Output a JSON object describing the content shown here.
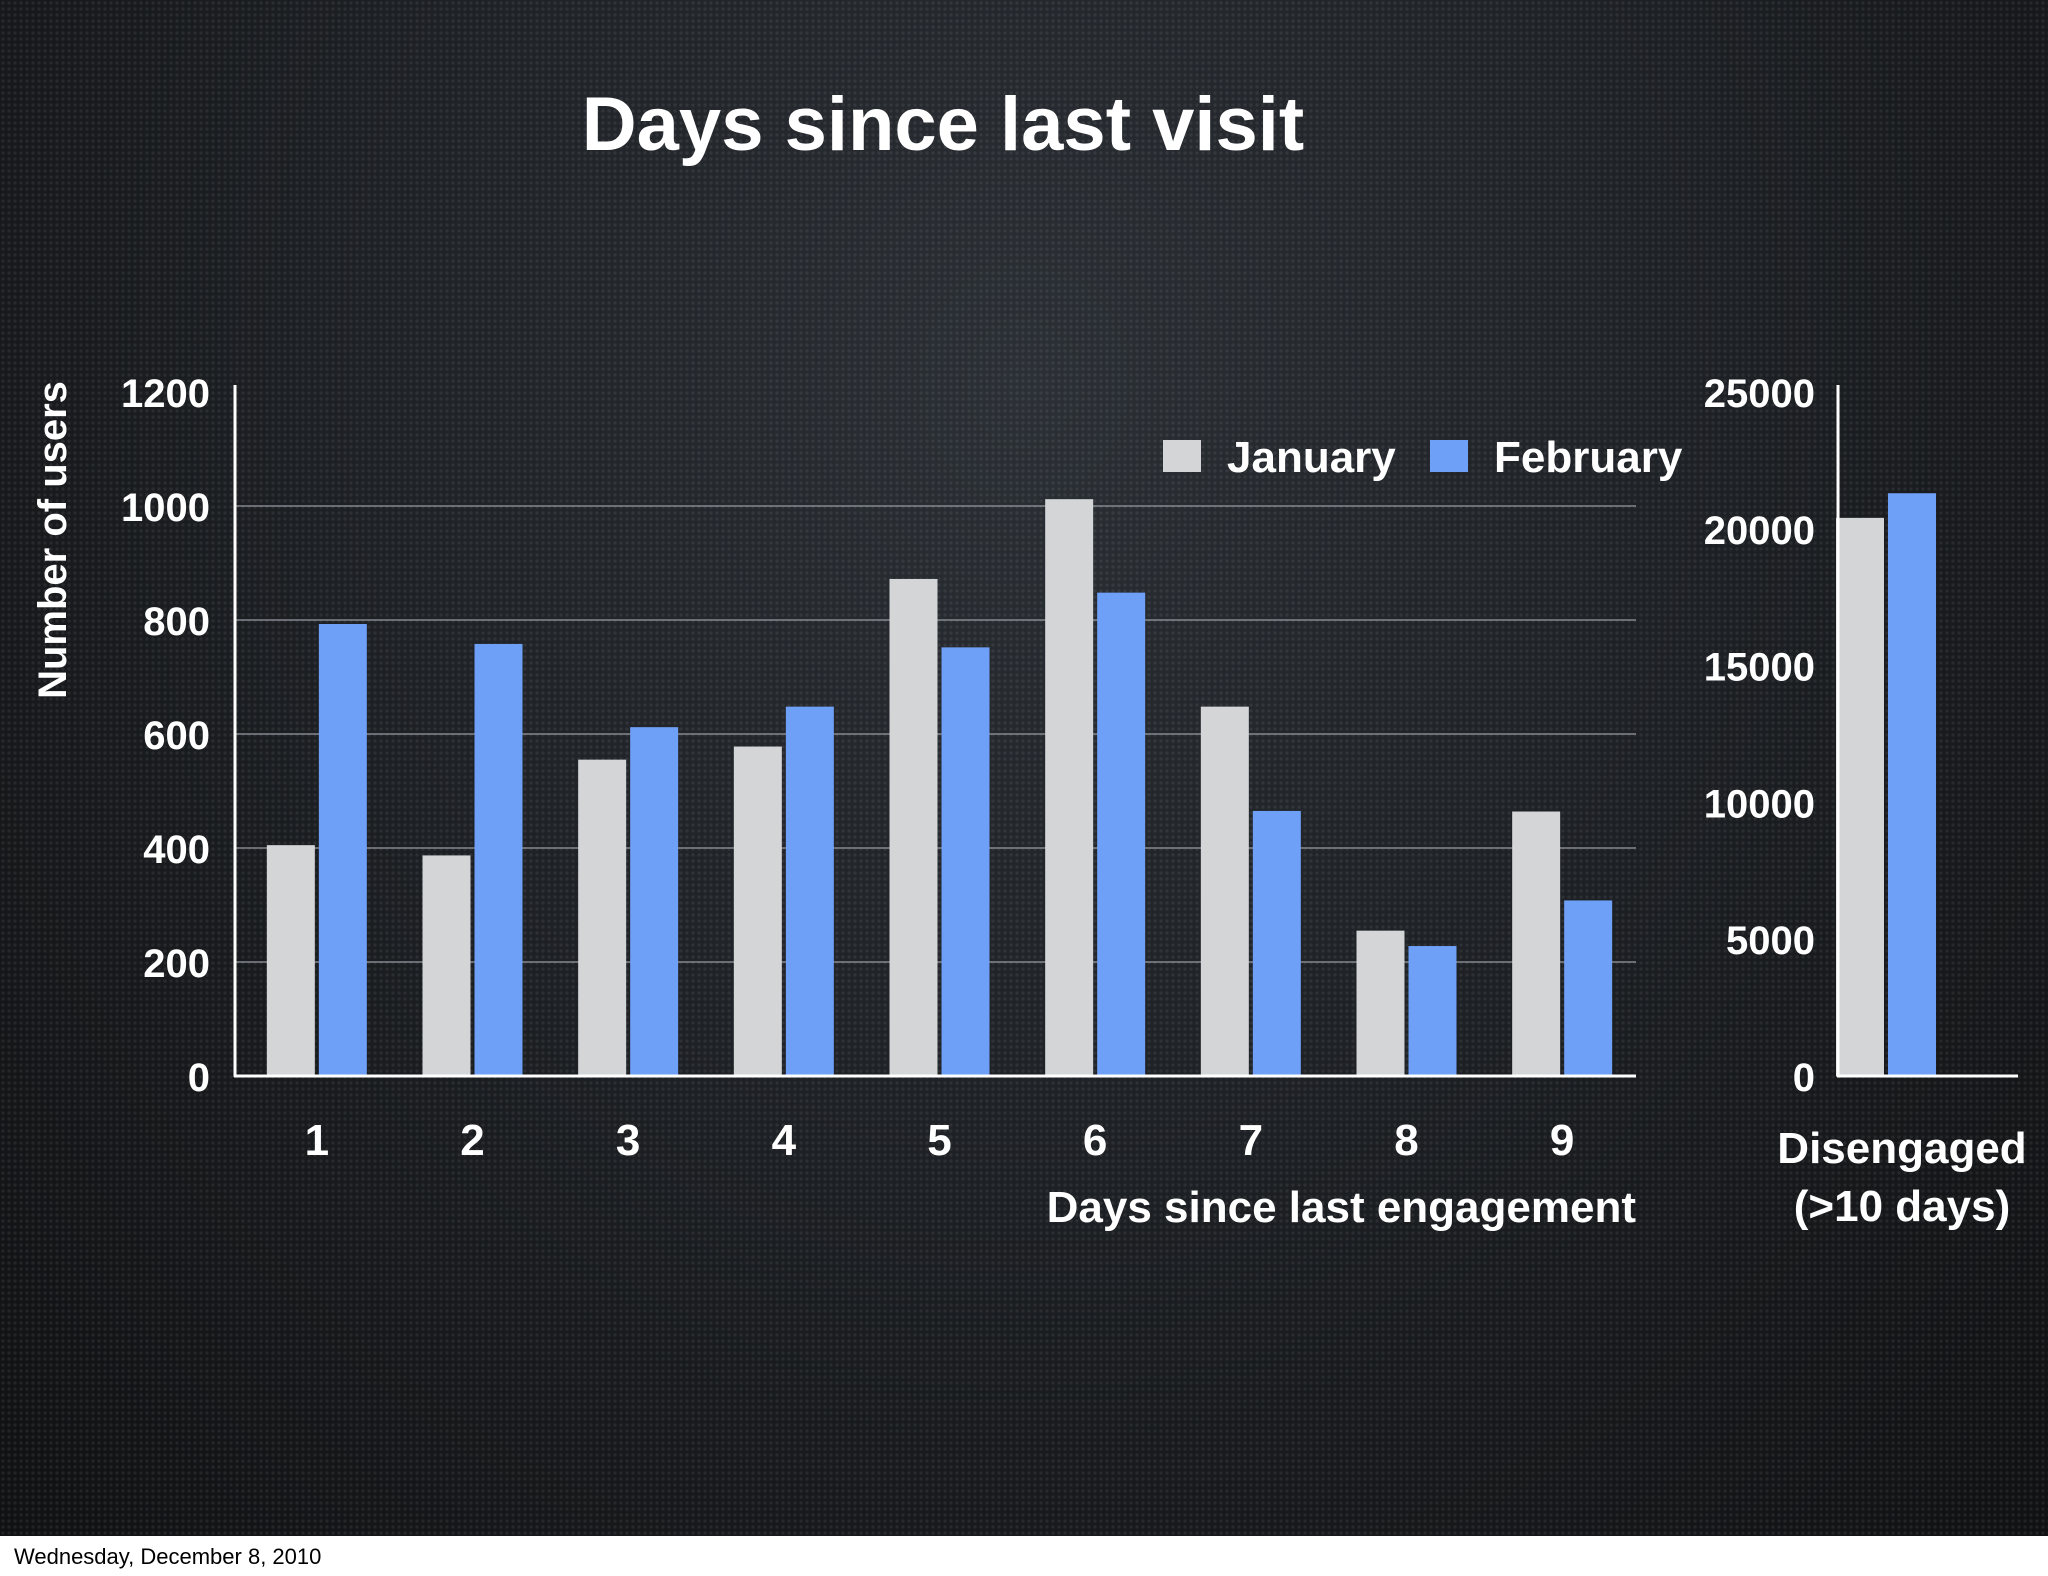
{
  "slide": {
    "title": "Days since last visit",
    "footer_date": "Wednesday, December 8, 2010"
  },
  "colors": {
    "background": "#1a1d21",
    "january": "#d3d5d7",
    "february": "#6fa0f7",
    "gridline": "#8a8f96",
    "text": "#ffffff"
  },
  "chart_data": [
    {
      "type": "bar",
      "categories": [
        "1",
        "2",
        "3",
        "4",
        "5",
        "6",
        "7",
        "8",
        "9"
      ],
      "series": [
        {
          "name": "January",
          "values": [
            405,
            387,
            555,
            578,
            872,
            1012,
            648,
            255,
            464
          ]
        },
        {
          "name": "February",
          "values": [
            793,
            758,
            612,
            648,
            752,
            848,
            465,
            228,
            308
          ]
        }
      ],
      "xlabel": "Days since last engagement",
      "ylabel": "Number of users",
      "ylim": [
        0,
        1200
      ],
      "yticks": [
        0,
        200,
        400,
        600,
        800,
        1000,
        1200
      ],
      "grid": true,
      "legend": "top-right"
    },
    {
      "type": "bar",
      "categories": [
        "Disengaged\n(>10 days)"
      ],
      "series": [
        {
          "name": "January",
          "values": [
            20400
          ]
        },
        {
          "name": "February",
          "values": [
            21300
          ]
        }
      ],
      "xlabel": "",
      "ylabel": "",
      "ylim": [
        0,
        25000
      ],
      "yticks": [
        0,
        5000,
        10000,
        15000,
        20000,
        25000
      ],
      "grid": false
    }
  ]
}
